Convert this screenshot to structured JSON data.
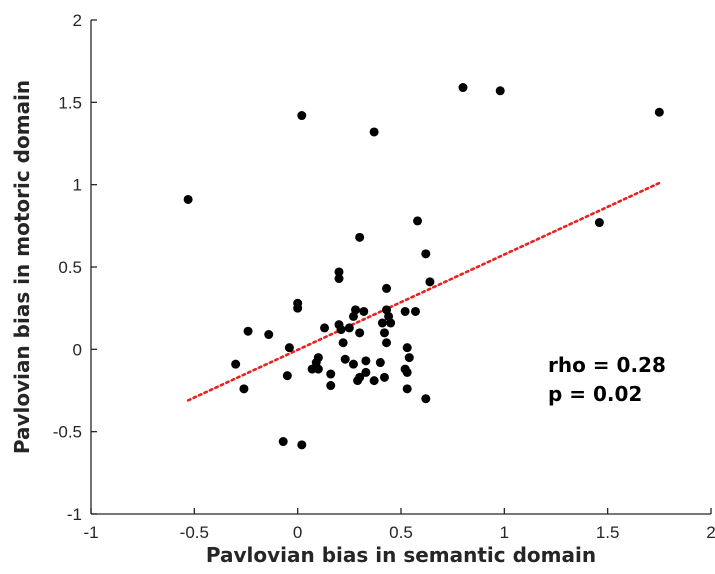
{
  "chart_data": {
    "type": "scatter",
    "title": "",
    "xlabel": "Pavlovian bias in semantic domain",
    "ylabel": "Pavlovian bias in motoric domain",
    "xlim": [
      -1,
      2
    ],
    "ylim": [
      -1,
      2
    ],
    "xticks": [
      -1,
      -0.5,
      0,
      0.5,
      1,
      1.5,
      2
    ],
    "xtick_labels": [
      "-1",
      "-0.5",
      "0",
      "0.5",
      "1",
      "1.5",
      "2"
    ],
    "yticks": [
      -1,
      -0.5,
      0,
      0.5,
      1,
      1.5,
      2
    ],
    "ytick_labels": [
      "-1",
      "-0.5",
      "0",
      "0.5",
      "1",
      "1.5",
      "2"
    ],
    "grid": false,
    "marker_color": "#000000",
    "fit_color": "#e8221f",
    "fit_line": {
      "x": [
        -0.53,
        1.75
      ],
      "y": [
        -0.31,
        1.01
      ],
      "style": "dotted"
    },
    "annotations": [
      "rho = 0.28",
      "p = 0.02"
    ],
    "points": [
      {
        "x": -0.53,
        "y": 0.91
      },
      {
        "x": 0.02,
        "y": 1.42
      },
      {
        "x": 0.37,
        "y": 1.32
      },
      {
        "x": 0.8,
        "y": 1.59
      },
      {
        "x": 0.98,
        "y": 1.57
      },
      {
        "x": 1.75,
        "y": 1.44
      },
      {
        "x": 1.46,
        "y": 0.77
      },
      {
        "x": 0.58,
        "y": 0.78
      },
      {
        "x": 0.3,
        "y": 0.68
      },
      {
        "x": 0.62,
        "y": 0.58
      },
      {
        "x": 0.64,
        "y": 0.41
      },
      {
        "x": 0.2,
        "y": 0.47
      },
      {
        "x": 0.2,
        "y": 0.43
      },
      {
        "x": 0.43,
        "y": 0.37
      },
      {
        "x": 0.0,
        "y": 0.28
      },
      {
        "x": 0.0,
        "y": 0.25
      },
      {
        "x": 0.28,
        "y": 0.24
      },
      {
        "x": 0.32,
        "y": 0.23
      },
      {
        "x": 0.43,
        "y": 0.24
      },
      {
        "x": 0.52,
        "y": 0.23
      },
      {
        "x": 0.57,
        "y": 0.23
      },
      {
        "x": 0.27,
        "y": 0.2
      },
      {
        "x": 0.44,
        "y": 0.2
      },
      {
        "x": 0.41,
        "y": 0.16
      },
      {
        "x": 0.45,
        "y": 0.16
      },
      {
        "x": 0.2,
        "y": 0.15
      },
      {
        "x": 0.13,
        "y": 0.13
      },
      {
        "x": 0.21,
        "y": 0.12
      },
      {
        "x": 0.25,
        "y": 0.13
      },
      {
        "x": -0.24,
        "y": 0.11
      },
      {
        "x": -0.14,
        "y": 0.09
      },
      {
        "x": 0.3,
        "y": 0.1
      },
      {
        "x": 0.42,
        "y": 0.1
      },
      {
        "x": 0.22,
        "y": 0.04
      },
      {
        "x": 0.43,
        "y": 0.04
      },
      {
        "x": -0.04,
        "y": 0.01
      },
      {
        "x": 0.53,
        "y": 0.01
      },
      {
        "x": 0.1,
        "y": -0.05
      },
      {
        "x": 0.23,
        "y": -0.06
      },
      {
        "x": 0.33,
        "y": -0.07
      },
      {
        "x": 0.54,
        "y": -0.05
      },
      {
        "x": 0.09,
        "y": -0.08
      },
      {
        "x": 0.27,
        "y": -0.09
      },
      {
        "x": 0.4,
        "y": -0.08
      },
      {
        "x": -0.3,
        "y": -0.09
      },
      {
        "x": 0.07,
        "y": -0.12
      },
      {
        "x": 0.1,
        "y": -0.12
      },
      {
        "x": 0.52,
        "y": -0.12
      },
      {
        "x": 0.53,
        "y": -0.14
      },
      {
        "x": 0.16,
        "y": -0.15
      },
      {
        "x": 0.33,
        "y": -0.14
      },
      {
        "x": -0.05,
        "y": -0.16
      },
      {
        "x": 0.3,
        "y": -0.17
      },
      {
        "x": 0.42,
        "y": -0.17
      },
      {
        "x": 0.29,
        "y": -0.19
      },
      {
        "x": 0.37,
        "y": -0.19
      },
      {
        "x": 0.16,
        "y": -0.22
      },
      {
        "x": -0.26,
        "y": -0.24
      },
      {
        "x": 0.53,
        "y": -0.24
      },
      {
        "x": 0.62,
        "y": -0.3
      },
      {
        "x": -0.07,
        "y": -0.56
      },
      {
        "x": 0.02,
        "y": -0.58
      }
    ]
  }
}
